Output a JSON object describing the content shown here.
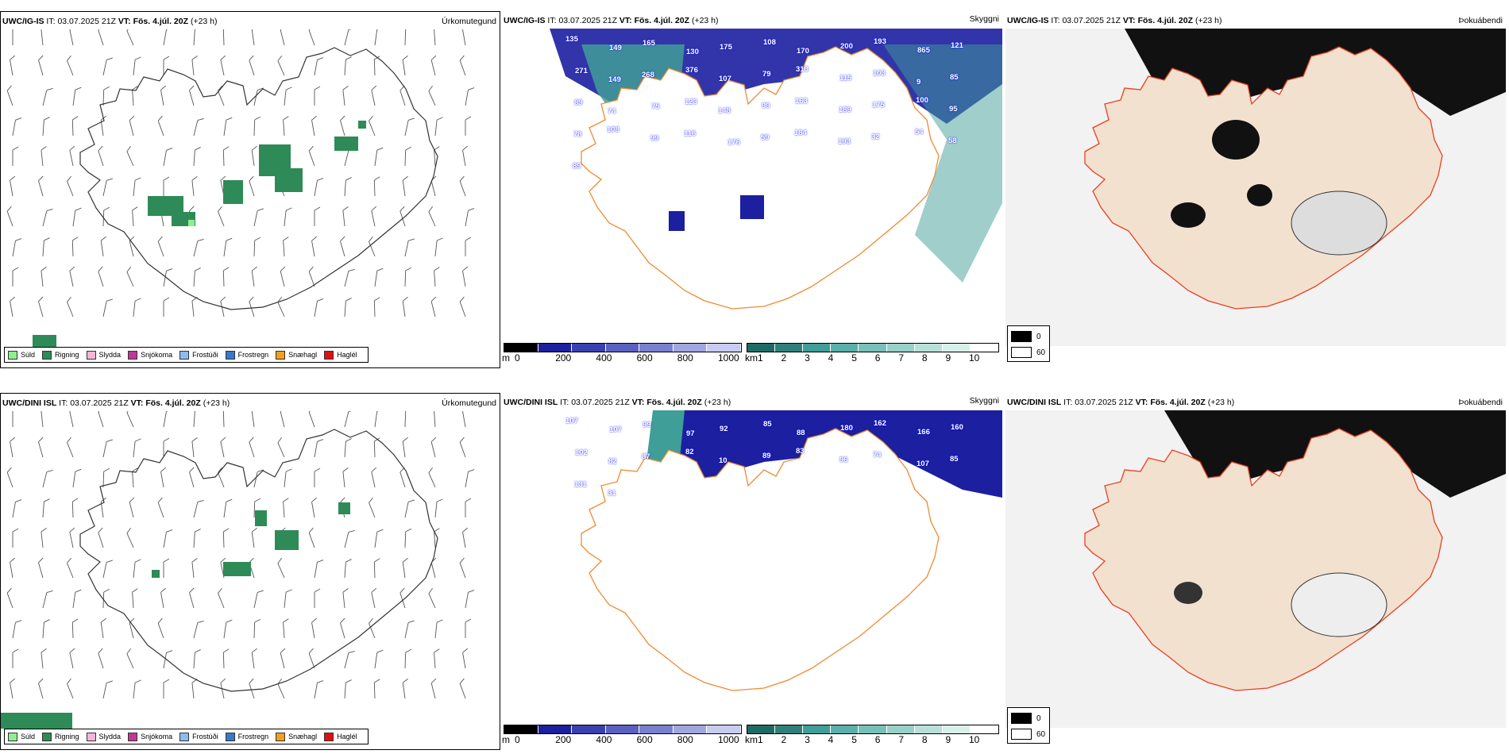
{
  "panels": [
    {
      "id": "r1c1",
      "model": "UWC/IG-IS",
      "it_label": "IT:",
      "it_value": "03.07.2025 21Z",
      "vt_label": "VT:",
      "vt_value": "Fös. 4.júl. 20Z",
      "lead": "(+23 h)",
      "right_title": "Úrkomutegund"
    },
    {
      "id": "r1c2",
      "model": "UWC/IG-IS",
      "it_label": "IT:",
      "it_value": "03.07.2025 21Z",
      "vt_label": "VT:",
      "vt_value": "Fös. 4.júl. 20Z",
      "lead": "(+23 h)",
      "right_title": "Skyggni",
      "numbers": [
        "135",
        "149",
        "165",
        "130",
        "175",
        "108",
        "170",
        "200",
        "193",
        "865",
        "121",
        "271",
        "149",
        "268",
        "376",
        "107",
        "79",
        "313",
        "115",
        "103",
        "9",
        "85",
        "89",
        "74",
        "75",
        "123",
        "148",
        "99",
        "163",
        "189",
        "175",
        "100",
        "95",
        "78",
        "108",
        "99",
        "116",
        "176",
        "59",
        "184",
        "193",
        "32",
        "54",
        "58",
        "89"
      ]
    },
    {
      "id": "r1c3",
      "model": "UWC/IG-IS",
      "it_label": "IT:",
      "it_value": "03.07.2025 21Z",
      "vt_label": "VT:",
      "vt_value": "Fös. 4.júl. 20Z",
      "lead": "(+23 h)",
      "right_title": "Þokuábendi"
    },
    {
      "id": "r2c1",
      "model": "UWC/DINI ISL",
      "it_label": "IT:",
      "it_value": "03.07.2025 21Z",
      "vt_label": "VT:",
      "vt_value": "Fös. 4.júl. 20Z",
      "lead": "(+23 h)",
      "right_title": "Úrkomutegund"
    },
    {
      "id": "r2c2",
      "model": "UWC/DINI ISL",
      "it_label": "IT:",
      "it_value": "03.07.2025 21Z",
      "vt_label": "VT:",
      "vt_value": "Fös. 4.júl. 20Z",
      "lead": "(+23 h)",
      "right_title": "Skyggni",
      "numbers": [
        "107",
        "107",
        "99",
        "97",
        "92",
        "85",
        "88",
        "180",
        "162",
        "166",
        "160",
        "102",
        "82",
        "87",
        "82",
        "10",
        "89",
        "83",
        "96",
        "74",
        "107",
        "85",
        "131",
        "31"
      ]
    },
    {
      "id": "r2c3",
      "model": "UWC/DINI ISL",
      "it_label": "IT:",
      "it_value": "03.07.2025 21Z",
      "vt_label": "VT:",
      "vt_value": "Fös. 4.júl. 20Z",
      "lead": "(+23 h)",
      "right_title": "Þokuábendi"
    }
  ],
  "precip_legend": [
    {
      "label": "Súld",
      "color": "#90ee90"
    },
    {
      "label": "Rigning",
      "color": "#2e8b57"
    },
    {
      "label": "Slydda",
      "color": "#f4b6d8"
    },
    {
      "label": "Snjókoma",
      "color": "#c0399a"
    },
    {
      "label": "Frostúði",
      "color": "#8fbcf0"
    },
    {
      "label": "Frostregn",
      "color": "#3a78c8"
    },
    {
      "label": "Snæhagl",
      "color": "#f0a020"
    },
    {
      "label": "Haglél",
      "color": "#e01010"
    }
  ],
  "ceiling_scale": {
    "unit": "m",
    "ticks": [
      "0",
      "200",
      "400",
      "600",
      "800",
      "1000"
    ]
  },
  "visibility_scale": {
    "unit": "km",
    "ticks": [
      "1",
      "2",
      "3",
      "4",
      "5",
      "6",
      "7",
      "8",
      "9",
      "10"
    ]
  },
  "fog_legend": [
    {
      "label": "0",
      "color": "#000000"
    },
    {
      "label": "60",
      "color": "#ffffff"
    }
  ],
  "colors": {
    "land_fill": "#f3e1d0",
    "roads_red": "#e84020",
    "roads_orange": "#f08a30",
    "rivers": "#7f8cf0",
    "low_cloud": "#1b1fa0",
    "vis_teal": "#3f9e98"
  }
}
